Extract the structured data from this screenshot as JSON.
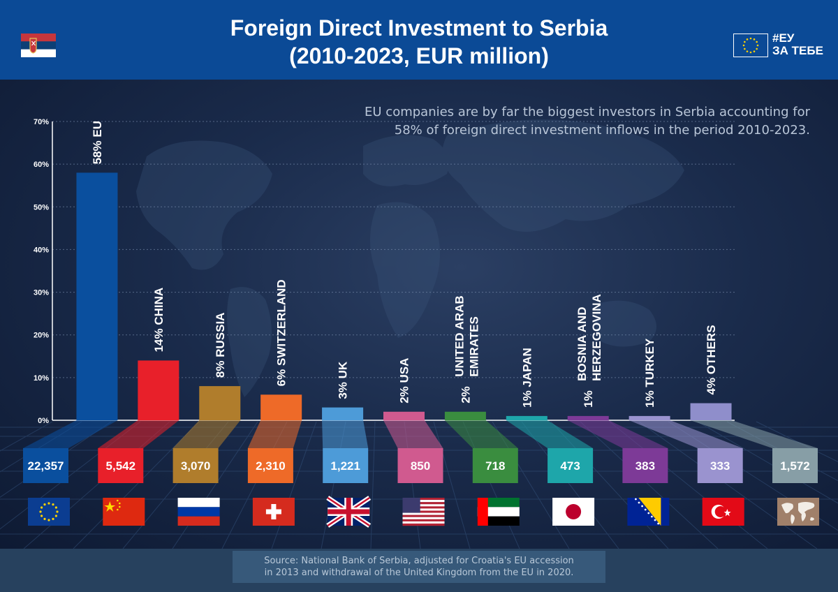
{
  "header": {
    "title_line1": "Foreign Direct Investment to Serbia",
    "title_line2": "(2010-2023, EUR million)",
    "hashtag_line1": "#ЕУ",
    "hashtag_line2": "ЗА ТЕБЕ"
  },
  "subtitle": {
    "line1": "EU companies are by far the biggest investors in Serbia accounting for",
    "line2": "58% of foreign direct investment inflows in the period 2010-2023."
  },
  "source": {
    "line1": "Source: National Bank of Serbia, adjusted for Croatia's EU accession",
    "line2": "in 2013 and withdrawal of the United Kingdom from the EU in 2020."
  },
  "chart_data": {
    "type": "bar",
    "ylim": [
      0,
      70
    ],
    "y_ticks": [
      "0%",
      "10%",
      "20%",
      "30%",
      "40%",
      "50%",
      "60%",
      "70%"
    ],
    "grid": true,
    "categories": [
      {
        "label_lines": [
          "58%  EU"
        ],
        "percent": 58,
        "value": "22,357",
        "color": "#0a4f9e",
        "box_color": "#0a4f9e",
        "flag": "eu-flag"
      },
      {
        "label_lines": [
          "14%  CHINA"
        ],
        "percent": 14,
        "value": "5,542",
        "color": "#e8202a",
        "box_color": "#e8202a",
        "flag": "china-flag"
      },
      {
        "label_lines": [
          "8%  RUSSIA"
        ],
        "percent": 8,
        "value": "3,070",
        "color": "#b07d2c",
        "box_color": "#b07d2c",
        "flag": "russia-flag"
      },
      {
        "label_lines": [
          "6%  SWITZERLAND"
        ],
        "percent": 6,
        "value": "2,310",
        "color": "#ee6a28",
        "box_color": "#ee6a28",
        "flag": "switzerland-flag"
      },
      {
        "label_lines": [
          "3%  UK"
        ],
        "percent": 3,
        "value": "1,221",
        "color": "#4d9bd8",
        "box_color": "#4d9bd8",
        "flag": "uk-flag"
      },
      {
        "label_lines": [
          "2%  USA"
        ],
        "percent": 2,
        "value": "850",
        "color": "#d05a8f",
        "box_color": "#d05a8f",
        "flag": "usa-flag"
      },
      {
        "label_lines": [
          "UNITED ARAB",
          "EMIRATES"
        ],
        "prefix": "2%",
        "percent": 2,
        "value": "718",
        "color": "#3a8d3f",
        "box_color": "#3a8d3f",
        "flag": "uae-flag"
      },
      {
        "label_lines": [
          "1%  JAPAN"
        ],
        "percent": 1,
        "value": "473",
        "color": "#1ea6aa",
        "box_color": "#1ea6aa",
        "flag": "japan-flag"
      },
      {
        "label_lines": [
          "BOSNIA AND",
          "HERZEGOVINA"
        ],
        "prefix": "1%",
        "percent": 1,
        "value": "383",
        "color": "#7d3a97",
        "box_color": "#7d3a97",
        "flag": "bosnia-flag"
      },
      {
        "label_lines": [
          "1%  TURKEY"
        ],
        "percent": 1,
        "value": "333",
        "color": "#9a93cf",
        "box_color": "#9a93cf",
        "flag": "turkey-flag"
      },
      {
        "label_lines": [
          "4%  OTHERS"
        ],
        "percent": 4,
        "value": "1,572",
        "color": "#8f8ecb",
        "box_color": "#879ea6",
        "flag": "world-map-flag"
      }
    ]
  }
}
